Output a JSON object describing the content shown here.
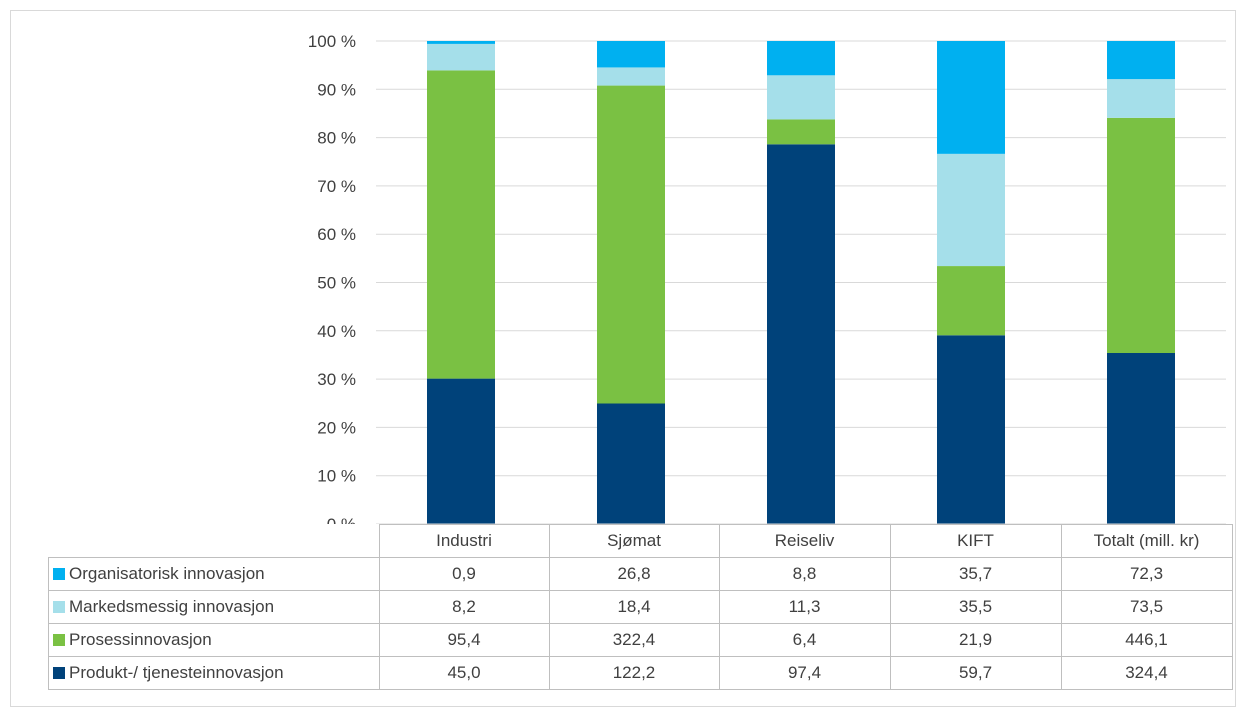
{
  "colors": {
    "Organisatorisk innovasjon": "#00b0f0",
    "Markedsmessig innovasjon": "#a5dfea",
    "Prosessinnovasjon": "#7ac143",
    "Produkt-/ tjenesteinnovasjon": "#00427a"
  },
  "chart_data": {
    "type": "bar",
    "stacked": "percent",
    "categories": [
      "Industri",
      "Sjømat",
      "Reiseliv",
      "KIFT",
      "Totalt (mill. kr)"
    ],
    "y_ticks": [
      "0 %",
      "10 %",
      "20 %",
      "30 %",
      "40 %",
      "50 %",
      "60 %",
      "70 %",
      "80 %",
      "90 %",
      "100 %"
    ],
    "ylim": [
      0,
      100
    ],
    "grid": true,
    "legend": "data-table",
    "series": [
      {
        "name": "Organisatorisk innovasjon",
        "values": [
          0.9,
          26.8,
          8.8,
          35.7,
          72.3
        ],
        "labels": [
          "0,9",
          "26,8",
          "8,8",
          "35,7",
          "72,3"
        ]
      },
      {
        "name": "Markedsmessig innovasjon",
        "values": [
          8.2,
          18.4,
          11.3,
          35.5,
          73.5
        ],
        "labels": [
          "8,2",
          "18,4",
          "11,3",
          "35,5",
          "73,5"
        ]
      },
      {
        "name": "Prosessinnovasjon",
        "values": [
          95.4,
          322.4,
          6.4,
          21.9,
          446.1
        ],
        "labels": [
          "95,4",
          "322,4",
          "6,4",
          "21,9",
          "446,1"
        ]
      },
      {
        "name": "Produkt-/ tjenesteinnovasjon",
        "values": [
          45.0,
          122.2,
          97.4,
          59.7,
          324.4
        ],
        "labels": [
          "45,0",
          "122,2",
          "97,4",
          "59,7",
          "324,4"
        ]
      }
    ]
  }
}
